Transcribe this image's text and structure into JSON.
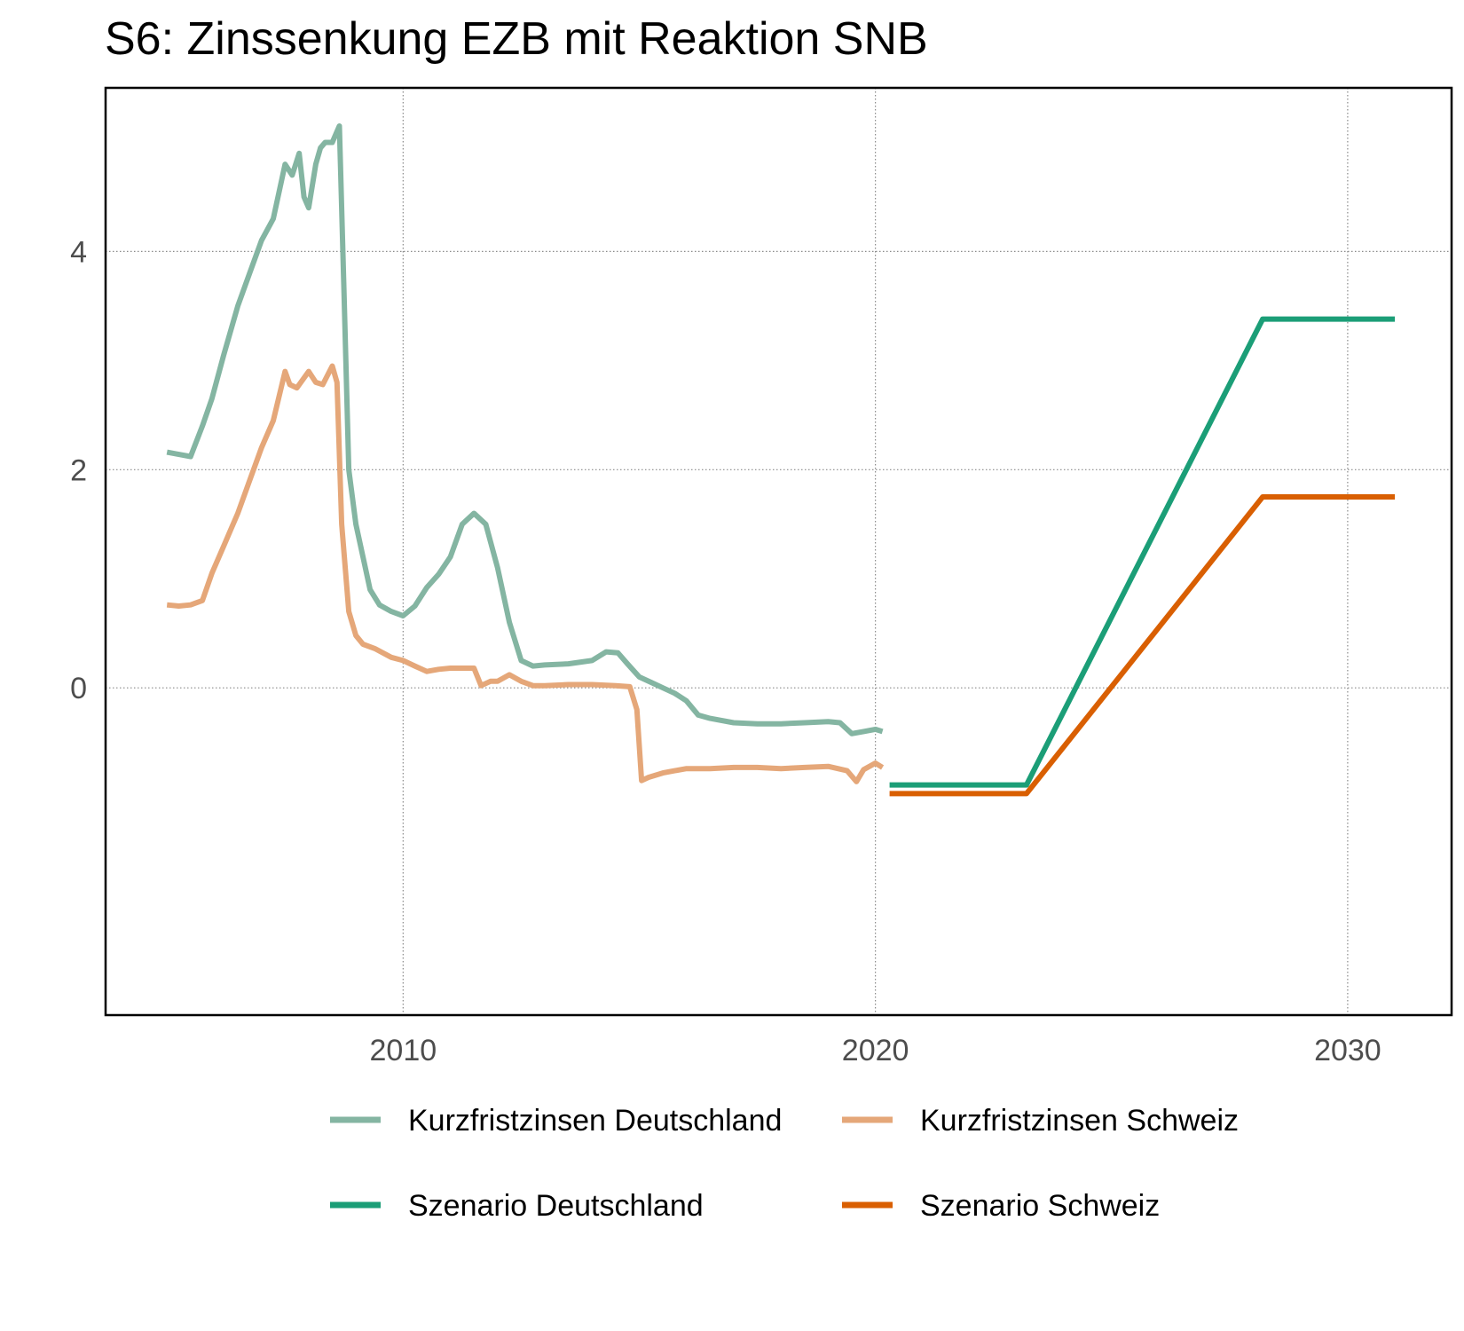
{
  "chart_data": {
    "type": "line",
    "title": "S6: Zinssenkung EZB mit Reaktion SNB",
    "xlabel": "",
    "ylabel": "",
    "xlim": [
      2003.7,
      2032.2
    ],
    "ylim": [
      -3.0,
      5.5
    ],
    "x_ticks": [
      2010,
      2020,
      2030
    ],
    "x_tick_labels": [
      "2010",
      "2020",
      "2030"
    ],
    "y_ticks": [
      0,
      2,
      4
    ],
    "y_tick_labels": [
      "0",
      "2",
      "4"
    ],
    "grid": true,
    "legend_position": "bottom",
    "series": [
      {
        "name": "Kurzfristzinsen Deutschland",
        "color": "#84b5a2",
        "x": [
          2005.0,
          2005.25,
          2005.5,
          2005.75,
          2005.95,
          2006.2,
          2006.5,
          2006.75,
          2007.0,
          2007.25,
          2007.5,
          2007.65,
          2007.8,
          2007.9,
          2008.0,
          2008.15,
          2008.25,
          2008.35,
          2008.5,
          2008.65,
          2008.75,
          2008.85,
          2009.0,
          2009.15,
          2009.3,
          2009.5,
          2009.75,
          2010.0,
          2010.25,
          2010.5,
          2010.75,
          2011.0,
          2011.25,
          2011.5,
          2011.75,
          2012.0,
          2012.25,
          2012.5,
          2012.75,
          2013.0,
          2013.5,
          2014.0,
          2014.3,
          2014.55,
          2014.75,
          2015.0,
          2015.25,
          2015.5,
          2015.75,
          2016.0,
          2016.25,
          2016.5,
          2017.0,
          2017.5,
          2018.0,
          2018.5,
          2019.0,
          2019.25,
          2019.5,
          2019.75,
          2020.0,
          2020.15
        ],
        "y": [
          2.16,
          2.14,
          2.12,
          2.4,
          2.65,
          3.05,
          3.5,
          3.8,
          4.1,
          4.3,
          4.8,
          4.7,
          4.9,
          4.5,
          4.4,
          4.8,
          4.95,
          5.0,
          5.0,
          5.15,
          3.6,
          2.0,
          1.5,
          1.2,
          0.9,
          0.76,
          0.7,
          0.66,
          0.75,
          0.92,
          1.04,
          1.2,
          1.5,
          1.6,
          1.5,
          1.1,
          0.6,
          0.25,
          0.2,
          0.21,
          0.22,
          0.25,
          0.33,
          0.32,
          0.22,
          0.1,
          0.05,
          0.0,
          -0.05,
          -0.12,
          -0.25,
          -0.28,
          -0.32,
          -0.33,
          -0.33,
          -0.32,
          -0.31,
          -0.32,
          -0.42,
          -0.4,
          -0.38,
          -0.4
        ]
      },
      {
        "name": "Kurzfristzinsen Schweiz",
        "color": "#e5a779",
        "x": [
          2005.0,
          2005.25,
          2005.5,
          2005.75,
          2005.95,
          2006.2,
          2006.5,
          2006.75,
          2007.0,
          2007.25,
          2007.5,
          2007.6,
          2007.75,
          2008.0,
          2008.15,
          2008.3,
          2008.5,
          2008.6,
          2008.7,
          2008.85,
          2009.0,
          2009.15,
          2009.4,
          2009.75,
          2010.0,
          2010.25,
          2010.5,
          2010.75,
          2011.0,
          2011.25,
          2011.5,
          2011.65,
          2011.85,
          2012.0,
          2012.25,
          2012.5,
          2012.75,
          2013.0,
          2013.5,
          2014.0,
          2014.5,
          2014.8,
          2014.95,
          2015.05,
          2015.2,
          2015.5,
          2015.75,
          2016.0,
          2016.5,
          2017.0,
          2017.5,
          2018.0,
          2018.5,
          2019.0,
          2019.4,
          2019.6,
          2019.75,
          2020.0,
          2020.15
        ],
        "y": [
          0.76,
          0.75,
          0.76,
          0.8,
          1.05,
          1.3,
          1.6,
          1.9,
          2.2,
          2.45,
          2.9,
          2.78,
          2.75,
          2.9,
          2.8,
          2.78,
          2.95,
          2.8,
          1.5,
          0.7,
          0.48,
          0.4,
          0.36,
          0.28,
          0.25,
          0.2,
          0.15,
          0.17,
          0.18,
          0.18,
          0.18,
          0.02,
          0.06,
          0.06,
          0.12,
          0.06,
          0.02,
          0.02,
          0.03,
          0.03,
          0.02,
          0.01,
          -0.2,
          -0.85,
          -0.82,
          -0.78,
          -0.76,
          -0.74,
          -0.74,
          -0.73,
          -0.73,
          -0.74,
          -0.73,
          -0.72,
          -0.76,
          -0.86,
          -0.75,
          -0.69,
          -0.73
        ]
      },
      {
        "name": "Szenario Deutschland",
        "color": "#1b9e77",
        "x": [
          2020.3,
          2023.2,
          2028.2,
          2031.0
        ],
        "y": [
          -0.89,
          -0.89,
          3.38,
          3.38
        ]
      },
      {
        "name": "Szenario Schweiz",
        "color": "#d95f02",
        "x": [
          2020.3,
          2023.2,
          2028.2,
          2031.0
        ],
        "y": [
          -0.97,
          -0.97,
          1.75,
          1.75
        ]
      }
    ]
  }
}
